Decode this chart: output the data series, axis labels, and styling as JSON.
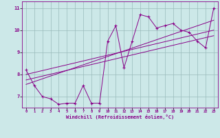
{
  "xlabel": "Windchill (Refroidissement éolien,°C)",
  "bg_color": "#cce8e8",
  "line_color": "#880088",
  "grid_color": "#99bbbb",
  "xlim": [
    -0.5,
    23.5
  ],
  "ylim": [
    6.5,
    11.3
  ],
  "yticks": [
    7,
    8,
    9,
    10,
    11
  ],
  "xticks": [
    0,
    1,
    2,
    3,
    4,
    5,
    6,
    7,
    8,
    9,
    10,
    11,
    12,
    13,
    14,
    15,
    16,
    17,
    18,
    19,
    20,
    21,
    22,
    23
  ],
  "data_x": [
    0,
    1,
    2,
    3,
    4,
    5,
    6,
    7,
    8,
    9,
    10,
    11,
    12,
    13,
    14,
    15,
    16,
    17,
    18,
    19,
    20,
    21,
    22,
    23
  ],
  "data_y": [
    8.2,
    7.5,
    7.0,
    6.9,
    6.65,
    6.7,
    6.7,
    7.5,
    6.7,
    6.7,
    9.5,
    10.2,
    8.3,
    9.5,
    10.7,
    10.6,
    10.1,
    10.2,
    10.3,
    10.0,
    9.9,
    9.5,
    9.2,
    11.0
  ],
  "reg_lines": [
    {
      "x_start": 0,
      "y_start": 7.55,
      "x_end": 23,
      "y_end": 10.45
    },
    {
      "x_start": 0,
      "y_start": 7.75,
      "x_end": 23,
      "y_end": 9.75
    },
    {
      "x_start": 0,
      "y_start": 8.0,
      "x_end": 23,
      "y_end": 10.0
    }
  ]
}
